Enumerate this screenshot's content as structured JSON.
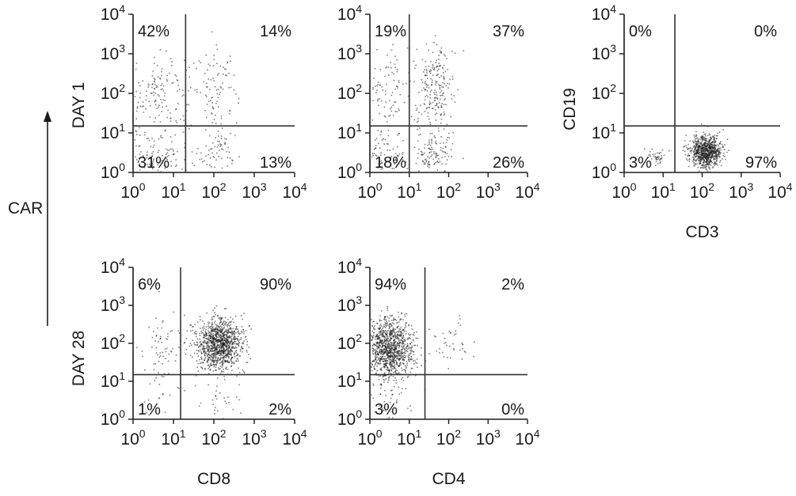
{
  "figure": {
    "car_label": "CAR",
    "tick_labels": [
      "10",
      "10",
      "10",
      "10",
      "10"
    ],
    "tick_exponents": [
      "0",
      "1",
      "2",
      "3",
      "4"
    ]
  },
  "chart_data": [
    {
      "type": "scatter",
      "row_label": "DAY 1",
      "xlabel": "",
      "ylabel": "",
      "xlim": [
        1,
        10000
      ],
      "ylim": [
        1,
        10000
      ],
      "scale": "log",
      "gate": {
        "x": 20,
        "y": 15
      },
      "quadrants": {
        "upper_left": "42%",
        "upper_right": "14%",
        "lower_left": "31%",
        "lower_right": "13%"
      },
      "populations": [
        {
          "x": 4,
          "y": 100,
          "sx": 0.45,
          "sy": 0.5,
          "n": 160
        },
        {
          "x": 120,
          "y": 120,
          "sx": 0.25,
          "sy": 0.5,
          "n": 90
        },
        {
          "x": 4,
          "y": 3,
          "sx": 0.45,
          "sy": 0.3,
          "n": 120
        },
        {
          "x": 120,
          "y": 3,
          "sx": 0.25,
          "sy": 0.3,
          "n": 60
        }
      ]
    },
    {
      "type": "scatter",
      "row_label": "",
      "xlabel": "",
      "ylabel": "",
      "xlim": [
        1,
        10000
      ],
      "ylim": [
        1,
        10000
      ],
      "scale": "log",
      "gate": {
        "x": 10,
        "y": 15
      },
      "quadrants": {
        "upper_left": "19%",
        "upper_right": "37%",
        "lower_left": "18%",
        "lower_right": "26%"
      },
      "populations": [
        {
          "x": 2.5,
          "y": 120,
          "sx": 0.3,
          "sy": 0.5,
          "n": 90
        },
        {
          "x": 40,
          "y": 150,
          "sx": 0.25,
          "sy": 0.55,
          "n": 220
        },
        {
          "x": 2.5,
          "y": 3,
          "sx": 0.3,
          "sy": 0.3,
          "n": 80
        },
        {
          "x": 40,
          "y": 3,
          "sx": 0.25,
          "sy": 0.3,
          "n": 120
        }
      ]
    },
    {
      "type": "scatter",
      "row_label": "",
      "xlabel": "CD3",
      "ylabel": "CD19",
      "xlim": [
        1,
        10000
      ],
      "ylim": [
        1,
        10000
      ],
      "scale": "log",
      "gate": {
        "x": 20,
        "y": 15
      },
      "quadrants": {
        "upper_left": "0%",
        "upper_right": "0%",
        "lower_left": "3%",
        "lower_right": "97%"
      },
      "populations": [
        {
          "x": 120,
          "y": 3.5,
          "sx": 0.2,
          "sy": 0.2,
          "n": 800
        },
        {
          "x": 7,
          "y": 2.5,
          "sx": 0.12,
          "sy": 0.12,
          "n": 40
        }
      ]
    },
    {
      "type": "scatter",
      "row_label": "DAY 28",
      "xlabel": "CD8",
      "ylabel": "",
      "xlim": [
        1,
        10000
      ],
      "ylim": [
        1,
        10000
      ],
      "scale": "log",
      "gate": {
        "x": 15,
        "y": 15
      },
      "quadrants": {
        "upper_left": "6%",
        "upper_right": "90%",
        "lower_left": "1%",
        "lower_right": "2%"
      },
      "populations": [
        {
          "x": 130,
          "y": 100,
          "sx": 0.3,
          "sy": 0.35,
          "n": 1100
        },
        {
          "x": 5,
          "y": 80,
          "sx": 0.3,
          "sy": 0.4,
          "n": 70
        },
        {
          "x": 5,
          "y": 3,
          "sx": 0.3,
          "sy": 0.25,
          "n": 15
        },
        {
          "x": 130,
          "y": 3,
          "sx": 0.3,
          "sy": 0.25,
          "n": 25
        }
      ]
    },
    {
      "type": "scatter",
      "row_label": "",
      "xlabel": "CD4",
      "ylabel": "",
      "xlim": [
        1,
        10000
      ],
      "ylim": [
        1,
        10000
      ],
      "scale": "log",
      "gate": {
        "x": 25,
        "y": 15
      },
      "quadrants": {
        "upper_left": "94%",
        "upper_right": "2%",
        "lower_left": "3%",
        "lower_right": "0%"
      },
      "populations": [
        {
          "x": 3,
          "y": 80,
          "sx": 0.3,
          "sy": 0.4,
          "n": 1100
        },
        {
          "x": 120,
          "y": 90,
          "sx": 0.25,
          "sy": 0.35,
          "n": 40
        },
        {
          "x": 3,
          "y": 3,
          "sx": 0.3,
          "sy": 0.25,
          "n": 40
        }
      ]
    }
  ]
}
